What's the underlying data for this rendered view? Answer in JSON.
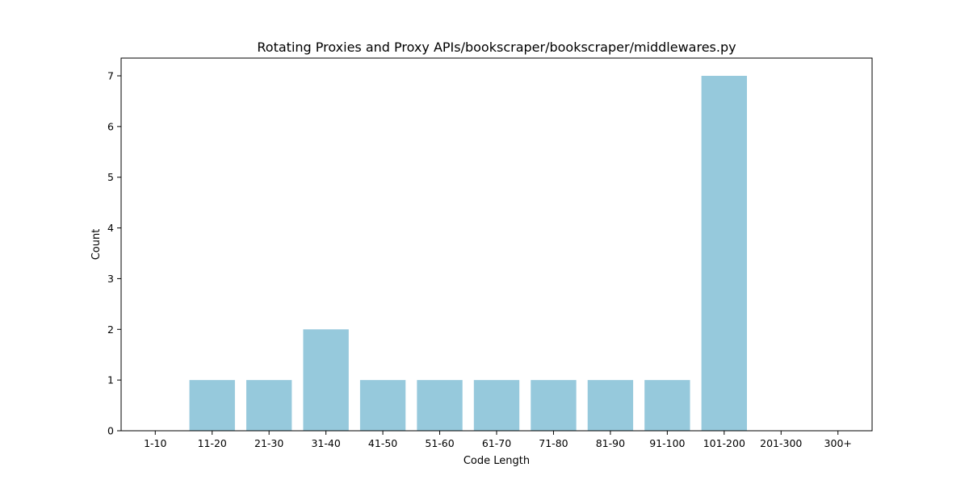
{
  "chart_data": {
    "type": "bar",
    "title": "Rotating Proxies and Proxy APIs/bookscraper/bookscraper/middlewares.py",
    "xlabel": "Code Length",
    "ylabel": "Count",
    "categories": [
      "1-10",
      "11-20",
      "21-30",
      "31-40",
      "41-50",
      "51-60",
      "61-70",
      "71-80",
      "81-90",
      "91-100",
      "101-200",
      "201-300",
      "300+"
    ],
    "values": [
      0,
      1,
      1,
      2,
      1,
      1,
      1,
      1,
      1,
      1,
      7,
      0,
      0
    ],
    "ylim": [
      0,
      7.35
    ],
    "yticks": [
      0,
      1,
      2,
      3,
      4,
      5,
      6,
      7
    ],
    "grid": false,
    "legend": "none",
    "bar_color": "#96c9dc"
  }
}
